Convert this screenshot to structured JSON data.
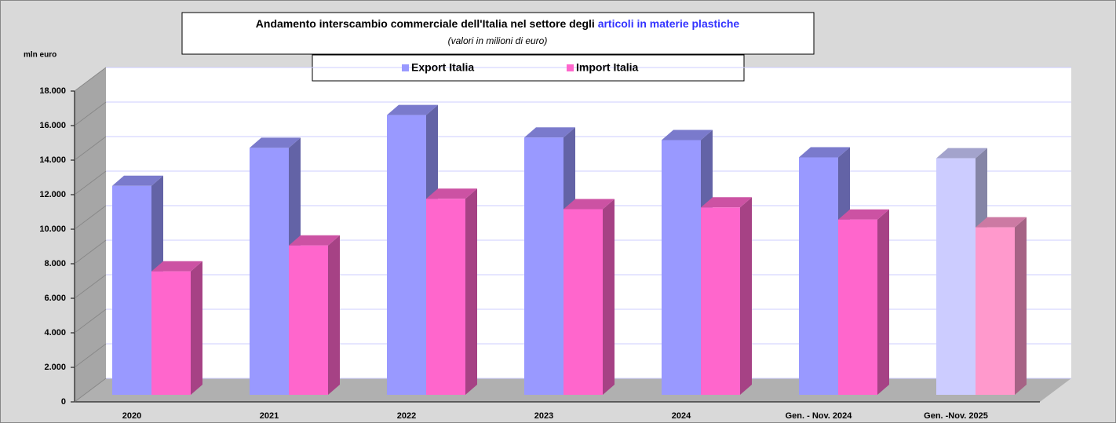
{
  "chart_data": {
    "type": "bar3d",
    "title": "Andamento interscambio commerciale dell'Italia nel settore degli ",
    "title_highlight": "articoli in materie plastiche",
    "subtitle": "(valori in milioni di euro)",
    "y_label": "mln euro",
    "categories": [
      "2020",
      "2021",
      "2022",
      "2023",
      "2024",
      "Gen. - Nov. 2024",
      "Gen. -Nov.  2025"
    ],
    "series": [
      {
        "name": "Export Italia",
        "color": "#9999ff",
        "colors": [
          "#9999ff",
          "#9999ff",
          "#9999ff",
          "#9999ff",
          "#9999ff",
          "#9999ff",
          "#ccccff"
        ],
        "values": [
          12100,
          14300,
          16200,
          14900,
          14750,
          13750,
          13700
        ]
      },
      {
        "name": "Import Italia",
        "color": "#ff66cc",
        "colors": [
          "#ff66cc",
          "#ff66cc",
          "#ff66cc",
          "#ff66cc",
          "#ff66cc",
          "#ff66cc",
          "#ff99cc"
        ],
        "values": [
          7150,
          8650,
          11350,
          10750,
          10850,
          10150,
          9700
        ]
      }
    ],
    "ylim": [
      0,
      18000
    ],
    "yticks": [
      0,
      {
        "value": 2000,
        "label": "2.000"
      },
      {
        "value": 4000,
        "label": "4.000"
      },
      {
        "value": 6000,
        "label": "6.000"
      },
      {
        "value": 8000,
        "label": "8.000"
      },
      {
        "value": 10000,
        "label": "10.000"
      },
      {
        "value": 12000,
        "label": "12.000"
      },
      {
        "value": 14000,
        "label": "14.000"
      },
      {
        "value": 16000,
        "label": "16.000"
      },
      {
        "value": 18000,
        "label": "18.000"
      }
    ],
    "grid": true,
    "legend": "top"
  }
}
